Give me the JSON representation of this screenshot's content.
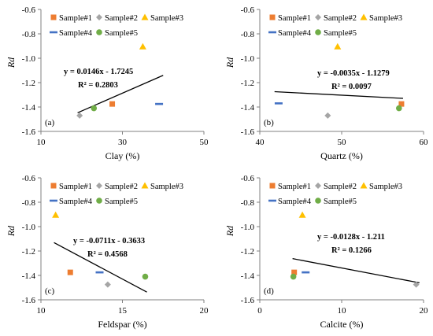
{
  "colors": {
    "sample1": "#ED7D31",
    "sample2": "#A5A5A5",
    "sample3": "#FFC000",
    "sample4": "#4472C4",
    "sample5": "#70AD47",
    "axis": "#808080",
    "trend": "#000000"
  },
  "legend": [
    "Sample#1",
    "Sample#2",
    "Sample#3",
    "Sample#4",
    "Sample#5"
  ],
  "chart_data": [
    {
      "type": "scatter",
      "panel_label": "(a)",
      "xlabel": "Clay (%)",
      "ylabel": "Rd",
      "xlim": [
        10,
        50
      ],
      "ylim": [
        -1.6,
        -0.6
      ],
      "xticks": [
        "10",
        "30",
        "50"
      ],
      "yticks": [
        "-0.6",
        "-0.8",
        "-1.0",
        "-1.2",
        "-1.4",
        "-1.6"
      ],
      "equation": "y = 0.0146x - 1.7245",
      "r2": "R² = 0.2803",
      "trendline": {
        "slope": 0.0146,
        "intercept": -1.7245,
        "x_range": [
          19,
          40
        ]
      },
      "series": [
        {
          "name": "Sample#1",
          "x": 27.5,
          "y": -1.375
        },
        {
          "name": "Sample#2",
          "x": 19.5,
          "y": -1.47
        },
        {
          "name": "Sample#3",
          "x": 35,
          "y": -0.905
        },
        {
          "name": "Sample#4",
          "x": 39,
          "y": -1.375
        },
        {
          "name": "Sample#5",
          "x": 23,
          "y": -1.41
        }
      ]
    },
    {
      "type": "scatter",
      "panel_label": "(b)",
      "xlabel": "Quartz (%)",
      "ylabel": "Rd",
      "xlim": [
        40,
        60
      ],
      "ylim": [
        -1.6,
        -0.6
      ],
      "xticks": [
        "40",
        "50",
        "60"
      ],
      "yticks": [
        "-0.6",
        "-0.8",
        "-1.0",
        "-1.2",
        "-1.4",
        "-1.6"
      ],
      "equation": "y = -0.0035x - 1.1279",
      "r2": "R² = 0.0097",
      "trendline": {
        "slope": -0.0035,
        "intercept": -1.1279,
        "x_range": [
          41.8,
          57.5
        ]
      },
      "series": [
        {
          "name": "Sample#1",
          "x": 57.3,
          "y": -1.375
        },
        {
          "name": "Sample#2",
          "x": 48.3,
          "y": -1.47
        },
        {
          "name": "Sample#3",
          "x": 49.5,
          "y": -0.905
        },
        {
          "name": "Sample#4",
          "x": 42.3,
          "y": -1.37
        },
        {
          "name": "Sample#5",
          "x": 57,
          "y": -1.41
        }
      ]
    },
    {
      "type": "scatter",
      "panel_label": "(c)",
      "xlabel": "Feldspar (%)",
      "ylabel": "Rd",
      "xlim": [
        10,
        20
      ],
      "ylim": [
        -1.6,
        -0.6
      ],
      "xticks": [
        "10",
        "15",
        "20"
      ],
      "yticks": [
        "-0.6",
        "-0.8",
        "-1.0",
        "-1.2",
        "-1.4",
        "-1.6"
      ],
      "equation": "y = -0.0711x - 0.3633",
      "r2": "R² = 0.4568",
      "trendline": {
        "slope": -0.0711,
        "intercept": -0.3633,
        "x_range": [
          10.8,
          16.5
        ]
      },
      "series": [
        {
          "name": "Sample#1",
          "x": 11.8,
          "y": -1.375
        },
        {
          "name": "Sample#2",
          "x": 14.1,
          "y": -1.475
        },
        {
          "name": "Sample#3",
          "x": 10.9,
          "y": -0.905
        },
        {
          "name": "Sample#4",
          "x": 13.6,
          "y": -1.375
        },
        {
          "name": "Sample#5",
          "x": 16.4,
          "y": -1.41
        }
      ]
    },
    {
      "type": "scatter",
      "panel_label": "(d)",
      "xlabel": "Calcite (%)",
      "ylabel": "Rd",
      "xlim": [
        0,
        20
      ],
      "ylim": [
        -1.6,
        -0.6
      ],
      "xticks": [
        "0",
        "10",
        "20"
      ],
      "yticks": [
        "-0.6",
        "-0.8",
        "-1.0",
        "-1.2",
        "-1.4",
        "-1.6"
      ],
      "equation": "y = -0.0128x - 1.211",
      "r2": "R² = 0.1266",
      "trendline": {
        "slope": -0.0128,
        "intercept": -1.211,
        "x_range": [
          4,
          19.5
        ]
      },
      "series": [
        {
          "name": "Sample#1",
          "x": 4.2,
          "y": -1.375
        },
        {
          "name": "Sample#2",
          "x": 19.1,
          "y": -1.475
        },
        {
          "name": "Sample#3",
          "x": 5.2,
          "y": -0.905
        },
        {
          "name": "Sample#4",
          "x": 5.6,
          "y": -1.375
        },
        {
          "name": "Sample#5",
          "x": 4.1,
          "y": -1.41
        }
      ]
    }
  ]
}
